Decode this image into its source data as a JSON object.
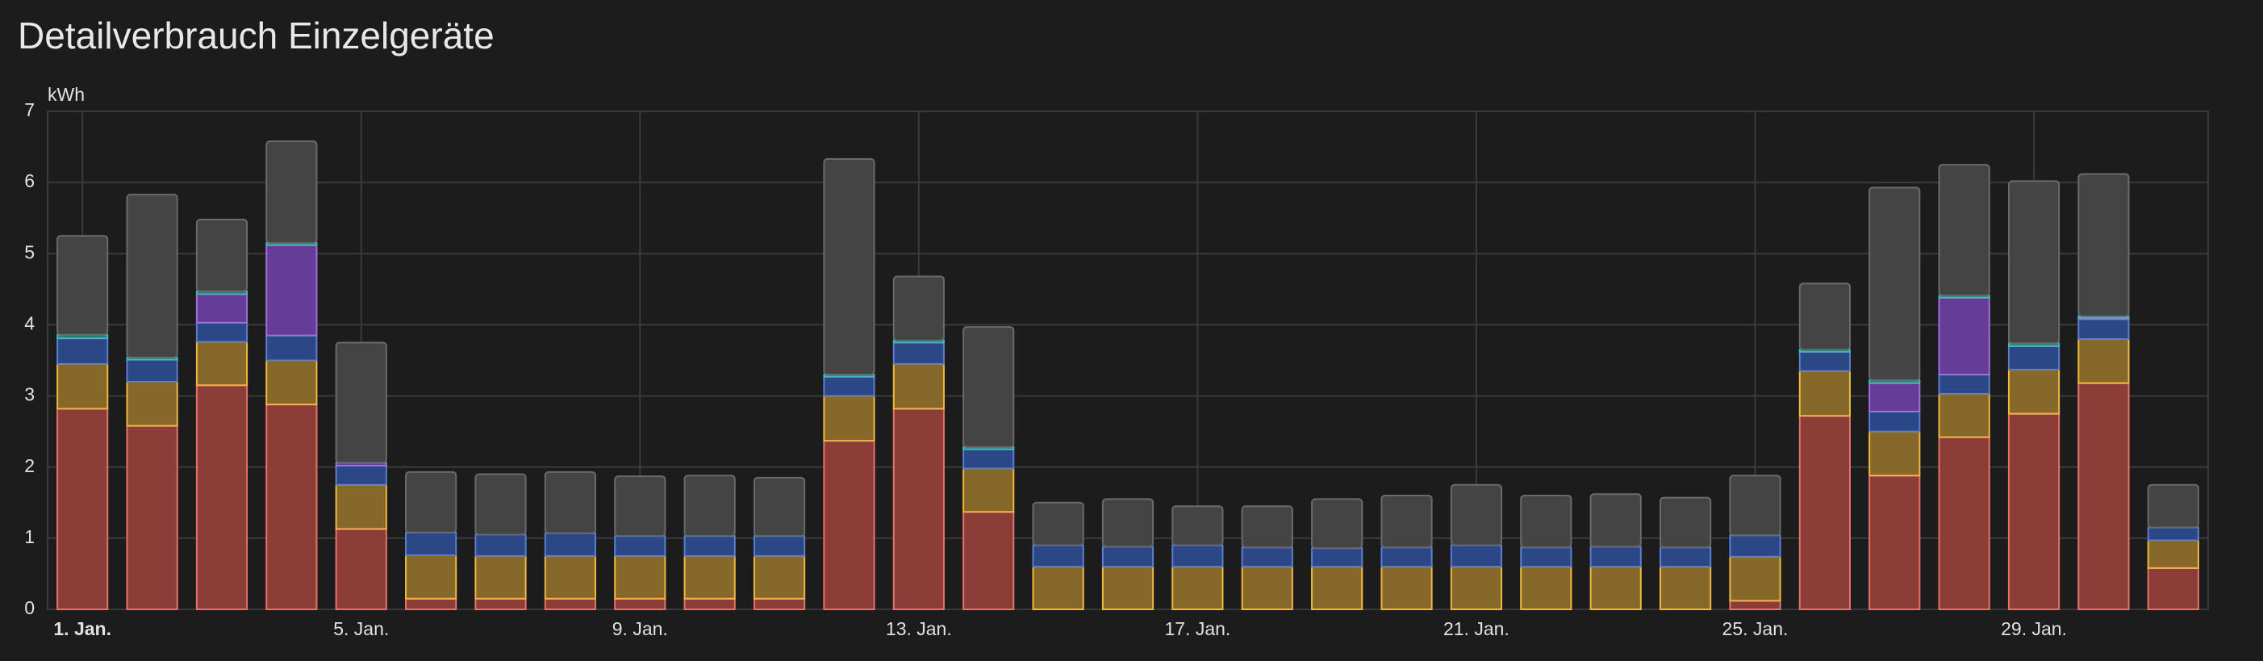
{
  "chart_data": {
    "type": "stacked_bar",
    "title": "Detailverbrauch Einzelgeräte",
    "y_unit": "kWh",
    "categories": [
      "1. Jan.",
      null,
      null,
      null,
      "5. Jan.",
      null,
      null,
      null,
      "9. Jan.",
      null,
      null,
      null,
      "13. Jan.",
      null,
      null,
      null,
      "17. Jan.",
      null,
      null,
      null,
      "21. Jan.",
      null,
      null,
      null,
      "25. Jan.",
      null,
      null,
      null,
      "29. Jan.",
      null,
      null
    ],
    "ylim": [
      0,
      7
    ],
    "yticks": [
      0,
      1,
      2,
      3,
      4,
      5,
      6,
      7
    ],
    "grid": true,
    "series": [
      {
        "color": "#e5736a",
        "fill": "#8c3d37",
        "values": [
          2.82,
          2.58,
          3.15,
          2.88,
          1.13,
          0.15,
          0.15,
          0.15,
          0.15,
          0.15,
          0.15,
          2.37,
          2.82,
          1.37,
          0,
          0,
          0,
          0,
          0,
          0,
          0,
          0,
          0,
          0,
          0.12,
          2.72,
          1.88,
          2.42,
          2.75,
          3.18,
          0.58
        ]
      },
      {
        "color": "#f0b840",
        "fill": "#86692a",
        "values": [
          0.63,
          0.62,
          0.61,
          0.62,
          0.62,
          0.61,
          0.6,
          0.6,
          0.6,
          0.6,
          0.6,
          0.63,
          0.63,
          0.61,
          0.6,
          0.6,
          0.6,
          0.6,
          0.6,
          0.6,
          0.6,
          0.6,
          0.6,
          0.6,
          0.62,
          0.63,
          0.62,
          0.61,
          0.62,
          0.62,
          0.39
        ]
      },
      {
        "color": "#5a7ed0",
        "fill": "#2c4786",
        "values": [
          0.36,
          0.31,
          0.27,
          0.35,
          0.27,
          0.32,
          0.3,
          0.32,
          0.28,
          0.28,
          0.28,
          0.27,
          0.3,
          0.27,
          0.3,
          0.28,
          0.3,
          0.27,
          0.26,
          0.27,
          0.3,
          0.27,
          0.28,
          0.27,
          0.3,
          0.27,
          0.28,
          0.27,
          0.33,
          0.28,
          0.18
        ]
      },
      {
        "color": "#a070dc",
        "fill": "#653d98",
        "values": [
          0,
          0,
          0.4,
          1.27,
          0.04,
          0,
          0,
          0,
          0,
          0,
          0,
          0,
          0,
          0,
          0,
          0,
          0,
          0,
          0,
          0,
          0,
          0,
          0,
          0,
          0,
          0,
          0.4,
          1.08,
          0,
          0.02,
          0
        ]
      },
      {
        "color": "#40b8b0",
        "fill": "#2d7c78",
        "values": [
          0.05,
          0.03,
          0.04,
          0.03,
          0,
          0,
          0,
          0,
          0,
          0,
          0,
          0.03,
          0.03,
          0.03,
          0,
          0,
          0,
          0,
          0,
          0,
          0,
          0,
          0,
          0,
          0,
          0.03,
          0.04,
          0.03,
          0.04,
          0.02,
          0
        ]
      },
      {
        "color": "#6a6a6a",
        "fill": "#444444",
        "values": [
          1.39,
          2.29,
          1.01,
          1.43,
          1.69,
          0.85,
          0.85,
          0.86,
          0.84,
          0.85,
          0.82,
          3.03,
          0.9,
          1.69,
          0.6,
          0.67,
          0.55,
          0.58,
          0.69,
          0.73,
          0.85,
          0.73,
          0.74,
          0.7,
          0.84,
          0.93,
          2.71,
          1.84,
          2.28,
          2.0,
          0.6
        ]
      }
    ]
  }
}
